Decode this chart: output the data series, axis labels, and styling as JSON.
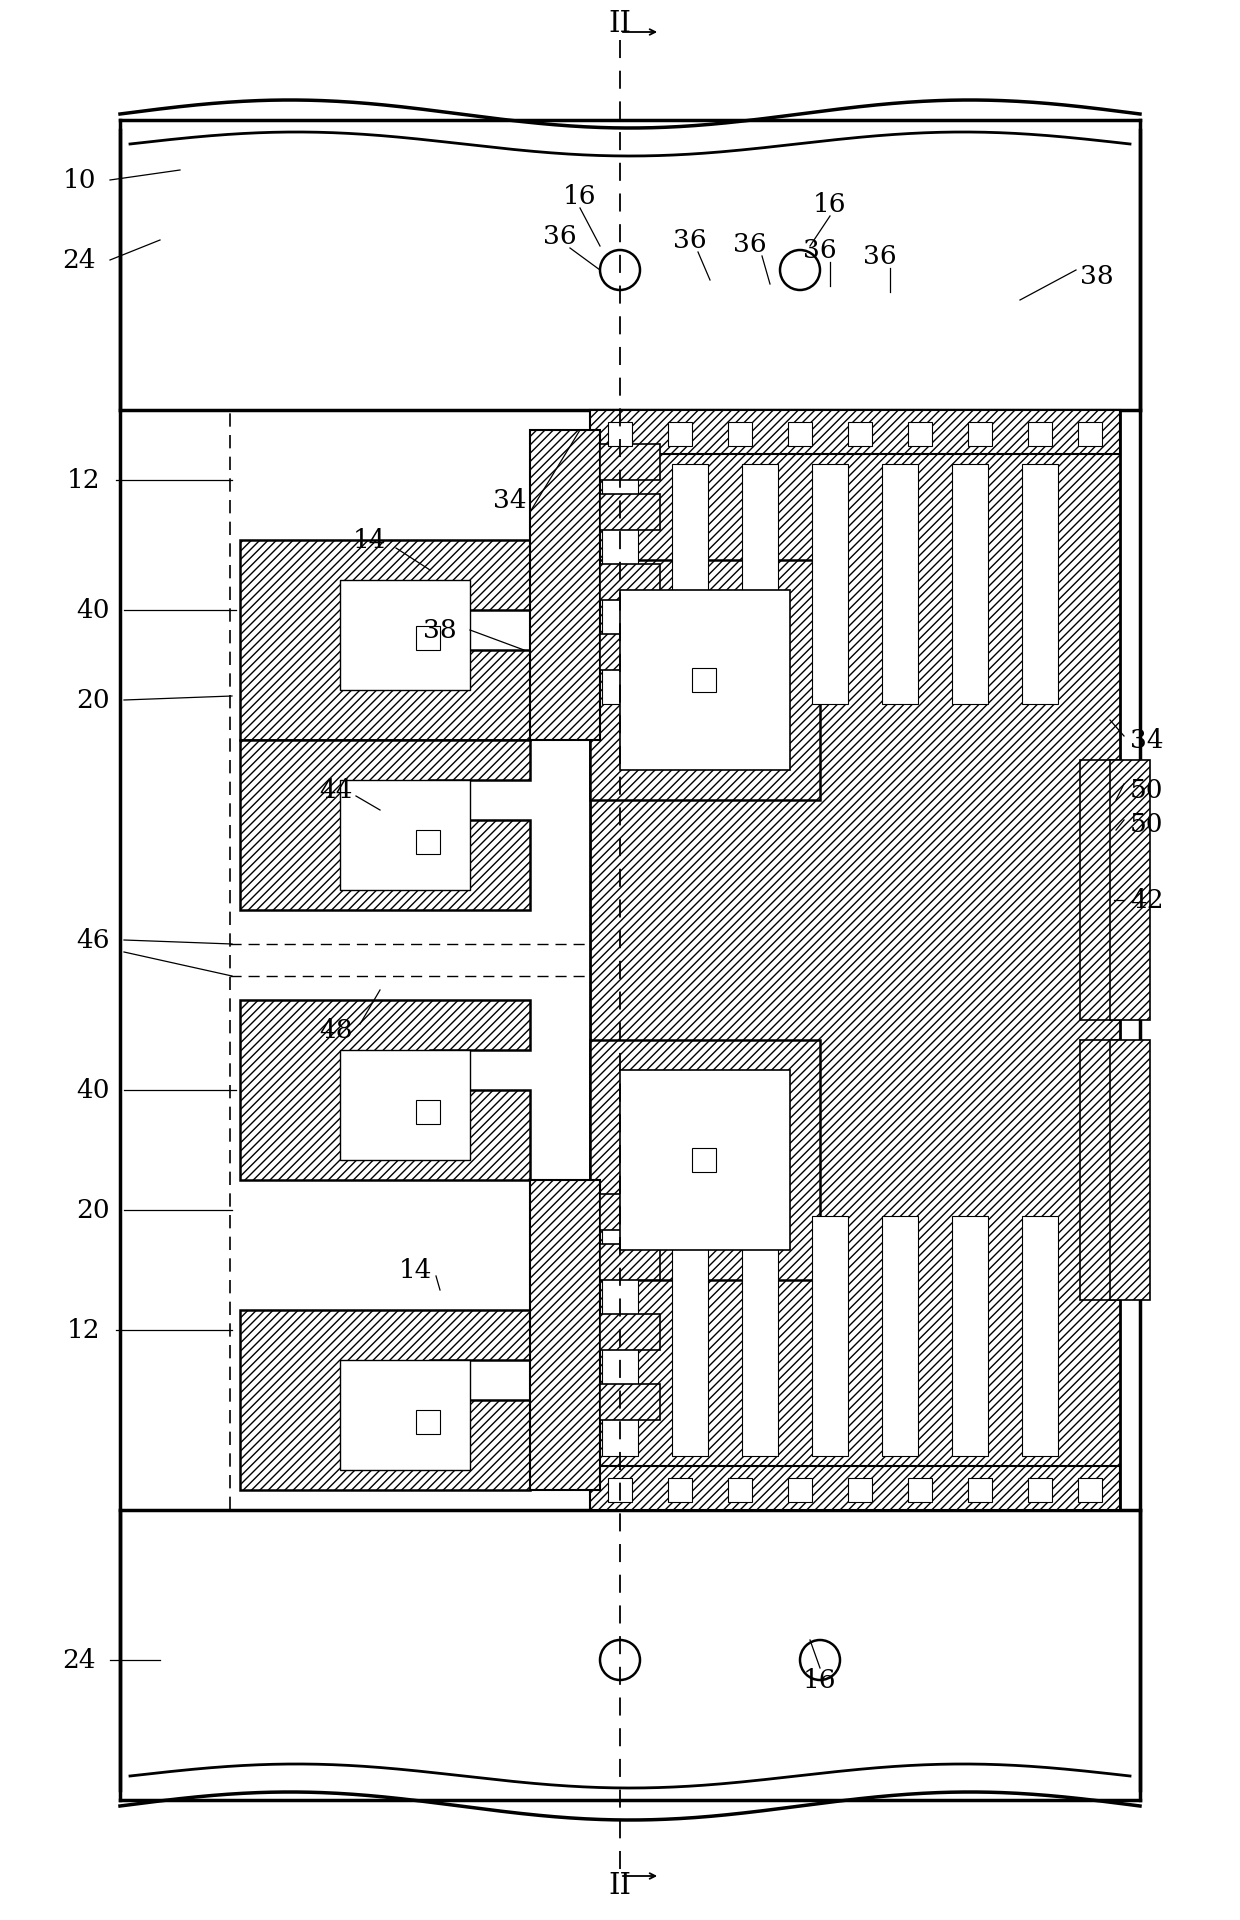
{
  "bg": "#ffffff",
  "lc": "#000000",
  "figw": 12.4,
  "figh": 19.2,
  "dpi": 100
}
